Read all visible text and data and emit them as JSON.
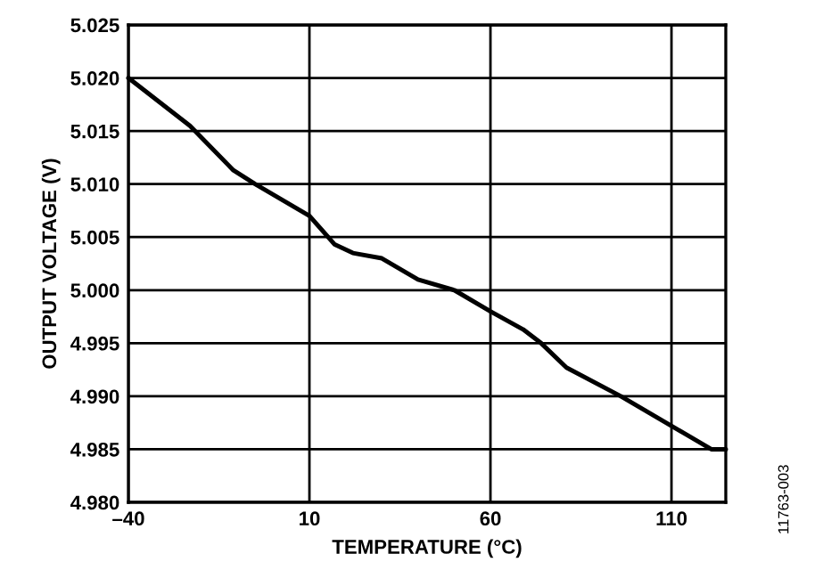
{
  "chart_data": {
    "type": "line",
    "xlabel": "TEMPERATURE (°C)",
    "ylabel": "OUTPUT VOLTAGE (V)",
    "annotations": [
      "11763-003"
    ],
    "xlim": [
      -40,
      125
    ],
    "xticks": [
      {
        "value": -40,
        "label": "–40"
      },
      10,
      60,
      110
    ],
    "ylim": [
      4.98,
      5.025
    ],
    "yticks": [
      {
        "value": 4.98,
        "label": "4.980"
      },
      {
        "value": 4.985,
        "label": "4.985"
      },
      {
        "value": 4.99,
        "label": "4.990"
      },
      {
        "value": 4.995,
        "label": "4.995"
      },
      {
        "value": 5.0,
        "label": "5.000"
      },
      {
        "value": 5.005,
        "label": "5.005"
      },
      {
        "value": 5.01,
        "label": "5.010"
      },
      {
        "value": 5.015,
        "label": "5.015"
      },
      {
        "value": 5.02,
        "label": "5.020"
      },
      {
        "value": 5.025,
        "label": "5.025"
      }
    ],
    "grid": true,
    "series": [
      {
        "color": "#000000",
        "x": [
          -40,
          -23,
          -11,
          -5,
          10,
          17,
          22,
          30,
          40,
          50,
          60,
          69,
          74,
          81,
          96,
          111,
          121,
          125
        ],
        "values": [
          5.02,
          5.0155,
          5.0113,
          5.01,
          5.007,
          5.0043,
          5.0035,
          5.003,
          5.001,
          5.0,
          4.998,
          4.9963,
          4.995,
          4.9927,
          4.99,
          4.987,
          4.985,
          4.985
        ]
      }
    ]
  }
}
